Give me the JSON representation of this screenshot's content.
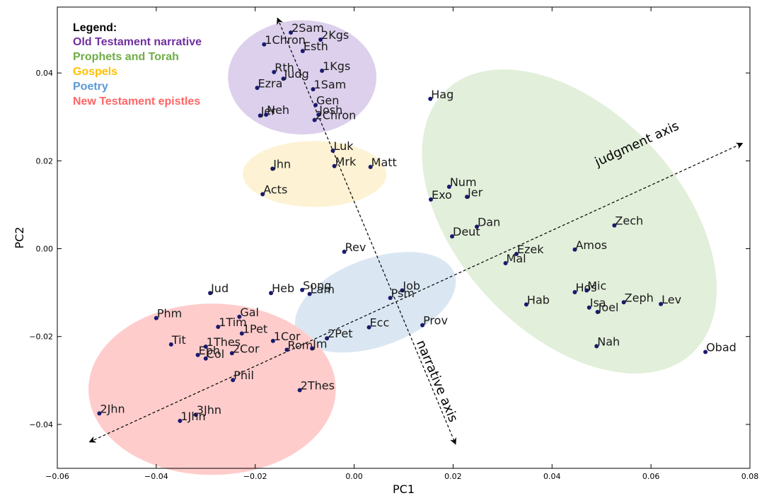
{
  "chart_data": {
    "type": "scatter",
    "xlabel": "PC1",
    "ylabel": "PC2",
    "xlim": [
      -0.06,
      0.08
    ],
    "ylim": [
      -0.05,
      0.055
    ],
    "xticks": [
      "−0.06",
      "−0.04",
      "−0.02",
      "0.00",
      "0.02",
      "0.04",
      "0.06",
      "0.08"
    ],
    "yticks": [
      "−0.04",
      "−0.02",
      "0.00",
      "0.02",
      "0.04"
    ],
    "grid": false,
    "legend": {
      "title": "Legend:",
      "position": "top-left",
      "entries": [
        {
          "label": "Old Testament narrative",
          "color": "#7030a0"
        },
        {
          "label": "Prophets and Torah",
          "color": "#70ad47"
        },
        {
          "label": "Gospels",
          "color": "#ffc000"
        },
        {
          "label": "Poetry",
          "color": "#5b9bd5"
        },
        {
          "label": "New Testament epistles",
          "color": "#ff6666"
        }
      ]
    },
    "regions": [
      {
        "group": "Old Testament narrative",
        "cx": -0.0105,
        "cy": 0.039,
        "rx": 0.015,
        "ry": 0.013,
        "angle": 0,
        "fill": "#dcd0ec"
      },
      {
        "group": "Prophets and Torah",
        "cx": 0.0435,
        "cy": 0.0062,
        "rx": 0.0225,
        "ry": 0.041,
        "angle": 43,
        "fill": "#e2efda"
      },
      {
        "group": "Gospels",
        "cx": -0.008,
        "cy": 0.017,
        "rx": 0.0145,
        "ry": 0.0075,
        "angle": 0,
        "fill": "#fdf2d3"
      },
      {
        "group": "Poetry",
        "cx": 0.0043,
        "cy": -0.0122,
        "rx": 0.017,
        "ry": 0.01,
        "angle": 20,
        "fill": "#dae7f3"
      },
      {
        "group": "New Testament epistles",
        "cx": -0.0287,
        "cy": -0.032,
        "rx": 0.025,
        "ry": 0.0195,
        "angle": 0,
        "fill": "#ffcccc"
      }
    ],
    "arrows": [
      {
        "label": "judgment axis",
        "from": [
          -0.0535,
          -0.044
        ],
        "to": [
          0.0785,
          0.024
        ],
        "label_at": [
          0.0575,
          0.023
        ]
      },
      {
        "label": "narrative axis",
        "from": [
          -0.0155,
          0.0525
        ],
        "to": [
          0.0205,
          -0.0445
        ],
        "label_at": [
          0.016,
          -0.0305
        ]
      }
    ],
    "point_color": "#1a1a6e",
    "points": [
      {
        "label": "2Sam",
        "x": -0.0128,
        "y": 0.0492
      },
      {
        "label": "2Kgs",
        "x": -0.0068,
        "y": 0.0476
      },
      {
        "label": "1Chron",
        "x": -0.0182,
        "y": 0.0465
      },
      {
        "label": "Esth",
        "x": -0.0104,
        "y": 0.045
      },
      {
        "label": "Rth",
        "x": -0.0162,
        "y": 0.0402
      },
      {
        "label": "Judg",
        "x": -0.0143,
        "y": 0.0387
      },
      {
        "label": "1Kgs",
        "x": -0.0065,
        "y": 0.0405
      },
      {
        "label": "Ezra",
        "x": -0.0196,
        "y": 0.0366
      },
      {
        "label": "1Sam",
        "x": -0.0083,
        "y": 0.0363
      },
      {
        "label": "Gen",
        "x": -0.0078,
        "y": 0.0327
      },
      {
        "label": "Jer",
        "x": -0.019,
        "y": 0.0303
      },
      {
        "label": "Neh",
        "x": -0.0178,
        "y": 0.0305
      },
      {
        "label": "Josh",
        "x": -0.0072,
        "y": 0.0305
      },
      {
        "label": "2Chron",
        "x": -0.008,
        "y": 0.0293
      },
      {
        "label": "Hag",
        "x": 0.0154,
        "y": 0.0341
      },
      {
        "label": "Luk",
        "x": -0.0043,
        "y": 0.0223
      },
      {
        "label": "Jhn",
        "x": -0.0165,
        "y": 0.0182
      },
      {
        "label": "Mrk",
        "x": -0.004,
        "y": 0.0188
      },
      {
        "label": "Matt",
        "x": 0.0033,
        "y": 0.0186
      },
      {
        "label": "Acts",
        "x": -0.0185,
        "y": 0.0124
      },
      {
        "label": "Num",
        "x": 0.0192,
        "y": 0.0141
      },
      {
        "label": "Exo",
        "x": 0.0155,
        "y": 0.0112
      },
      {
        "label": "Jer",
        "x": 0.0228,
        "y": 0.0118
      },
      {
        "label": "Dan",
        "x": 0.0248,
        "y": 0.005
      },
      {
        "label": "Zech",
        "x": 0.0526,
        "y": 0.0053
      },
      {
        "label": "Deut",
        "x": 0.0198,
        "y": 0.0028
      },
      {
        "label": "Ezek",
        "x": 0.0328,
        "y": -0.0012
      },
      {
        "label": "Amos",
        "x": 0.0446,
        "y": -0.0002
      },
      {
        "label": "Mal",
        "x": 0.0306,
        "y": -0.0033
      },
      {
        "label": "Rev",
        "x": -0.002,
        "y": -0.0007
      },
      {
        "label": "Jud",
        "x": -0.0291,
        "y": -0.0101
      },
      {
        "label": "Heb",
        "x": -0.0168,
        "y": -0.0101
      },
      {
        "label": "Song",
        "x": -0.0105,
        "y": -0.0094
      },
      {
        "label": "Lam",
        "x": -0.009,
        "y": -0.0103
      },
      {
        "label": "Job",
        "x": 0.0097,
        "y": -0.0095
      },
      {
        "label": "Psm",
        "x": 0.0073,
        "y": -0.0112
      },
      {
        "label": "Hos",
        "x": 0.0446,
        "y": -0.0099
      },
      {
        "label": "Mic",
        "x": 0.047,
        "y": -0.0095
      },
      {
        "label": "Hab",
        "x": 0.0348,
        "y": -0.0127
      },
      {
        "label": "Isa",
        "x": 0.0475,
        "y": -0.0134
      },
      {
        "label": "Joel",
        "x": 0.0492,
        "y": -0.0144
      },
      {
        "label": "Zeph",
        "x": 0.0545,
        "y": -0.0122
      },
      {
        "label": "Lev",
        "x": 0.062,
        "y": -0.0126
      },
      {
        "label": "Phm",
        "x": -0.04,
        "y": -0.0158
      },
      {
        "label": "Gal",
        "x": -0.0232,
        "y": -0.0155
      },
      {
        "label": "1Tim",
        "x": -0.0275,
        "y": -0.0178
      },
      {
        "label": "1Pet",
        "x": -0.0227,
        "y": -0.0193
      },
      {
        "label": "Ecc",
        "x": 0.003,
        "y": -0.0179
      },
      {
        "label": "Prov",
        "x": 0.0138,
        "y": -0.0174
      },
      {
        "label": "2Pet",
        "x": -0.0055,
        "y": -0.0204
      },
      {
        "label": "1Cor",
        "x": -0.0164,
        "y": -0.021
      },
      {
        "label": "Tit",
        "x": -0.037,
        "y": -0.0218
      },
      {
        "label": "1Thes",
        "x": -0.03,
        "y": -0.0223
      },
      {
        "label": "Rom",
        "x": -0.0136,
        "y": -0.023
      },
      {
        "label": "Jm",
        "x": -0.0085,
        "y": -0.0227
      },
      {
        "label": "2Cor",
        "x": -0.0247,
        "y": -0.0238
      },
      {
        "label": "Eph",
        "x": -0.0316,
        "y": -0.0242
      },
      {
        "label": "Col",
        "x": -0.03,
        "y": -0.025
      },
      {
        "label": "Nah",
        "x": 0.049,
        "y": -0.0222
      },
      {
        "label": "Obad",
        "x": 0.071,
        "y": -0.0235
      },
      {
        "label": "Phil",
        "x": -0.0245,
        "y": -0.0299
      },
      {
        "label": "2Thes",
        "x": -0.011,
        "y": -0.0322
      },
      {
        "label": "2Jhn",
        "x": -0.0515,
        "y": -0.0375
      },
      {
        "label": "3Jhn",
        "x": -0.032,
        "y": -0.0378
      },
      {
        "label": "1Jhn",
        "x": -0.0352,
        "y": -0.0392
      }
    ]
  }
}
